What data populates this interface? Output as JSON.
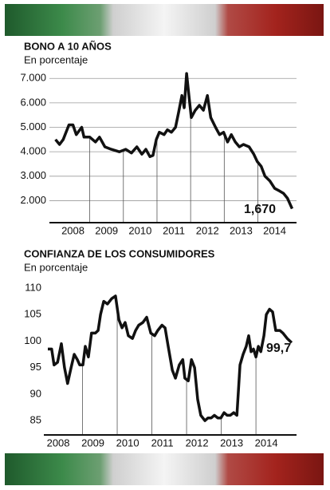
{
  "chart_data": [
    {
      "type": "line",
      "title": "BONO A 10 AÑOS",
      "subtitle": "En porcentaje",
      "color": "#111111",
      "grid": true,
      "x": [
        2007.98,
        2008.1,
        2008.21,
        2008.38,
        2008.5,
        2008.6,
        2008.76,
        2008.83,
        2009.0,
        2009.17,
        2009.29,
        2009.45,
        2009.64,
        2009.88,
        2010.07,
        2010.24,
        2010.4,
        2010.55,
        2010.67,
        2010.79,
        2010.88,
        2010.98,
        2011.07,
        2011.21,
        2011.31,
        2011.43,
        2011.55,
        2011.64,
        2011.74,
        2011.81,
        2011.88,
        2011.95,
        2012.02,
        2012.14,
        2012.26,
        2012.38,
        2012.5,
        2012.6,
        2012.74,
        2012.86,
        2012.98,
        2013.1,
        2013.21,
        2013.33,
        2013.45,
        2013.57,
        2013.74,
        2013.88,
        2013.98,
        2014.1,
        2014.21,
        2014.36,
        2014.5,
        2014.64,
        2014.76,
        2014.88,
        2015.02
      ],
      "values": [
        4.5,
        4.3,
        4.5,
        5.1,
        5.1,
        4.7,
        5.0,
        4.6,
        4.6,
        4.4,
        4.6,
        4.2,
        4.1,
        4.0,
        4.1,
        3.95,
        4.2,
        3.9,
        4.1,
        3.8,
        3.85,
        4.5,
        4.8,
        4.7,
        4.9,
        4.8,
        5.0,
        5.6,
        6.3,
        5.8,
        7.2,
        6.3,
        5.4,
        5.7,
        5.9,
        5.7,
        6.3,
        5.4,
        5.0,
        4.7,
        4.8,
        4.4,
        4.7,
        4.4,
        4.2,
        4.3,
        4.2,
        3.9,
        3.6,
        3.4,
        3.0,
        2.8,
        2.5,
        2.4,
        2.3,
        2.1,
        1.67
      ],
      "end_label": "1,670",
      "xlim": [
        2007.8,
        2015.15
      ],
      "xticks": [
        {
          "value": 2008.5,
          "label": "2008"
        },
        {
          "value": 2009.5,
          "label": "2009"
        },
        {
          "value": 2010.5,
          "label": "2010"
        },
        {
          "value": 2011.5,
          "label": "2011"
        },
        {
          "value": 2012.5,
          "label": "2012"
        },
        {
          "value": 2013.5,
          "label": "2013"
        },
        {
          "value": 2014.5,
          "label": "2014"
        }
      ],
      "ylim": [
        1.1,
        7.4
      ],
      "yticks": [
        {
          "value": 2,
          "label": "2.000"
        },
        {
          "value": 3,
          "label": "3.000"
        },
        {
          "value": 4,
          "label": "4.000"
        },
        {
          "value": 5,
          "label": "5.000"
        },
        {
          "value": 6,
          "label": "6.000"
        },
        {
          "value": 7,
          "label": "7.000"
        }
      ]
    },
    {
      "type": "line",
      "title": "CONFIANZA DE LOS CONSUMIDORES",
      "subtitle": "En porcentaje",
      "color": "#111111",
      "grid": false,
      "x": [
        2008.0,
        2008.11,
        2008.18,
        2008.28,
        2008.39,
        2008.48,
        2008.57,
        2008.67,
        2008.76,
        2008.85,
        2008.92,
        2009.01,
        2009.08,
        2009.17,
        2009.26,
        2009.37,
        2009.45,
        2009.52,
        2009.61,
        2009.72,
        2009.84,
        2009.95,
        2010.05,
        2010.14,
        2010.23,
        2010.32,
        2010.44,
        2010.53,
        2010.62,
        2010.74,
        2010.85,
        2010.97,
        2011.08,
        2011.17,
        2011.29,
        2011.38,
        2011.47,
        2011.59,
        2011.68,
        2011.79,
        2011.89,
        2011.95,
        2012.05,
        2012.14,
        2012.23,
        2012.32,
        2012.41,
        2012.53,
        2012.62,
        2012.71,
        2012.8,
        2012.9,
        2012.99,
        2013.08,
        2013.17,
        2013.26,
        2013.36,
        2013.45,
        2013.54,
        2013.63,
        2013.72,
        2013.79,
        2013.86,
        2013.93,
        2014.0,
        2014.07,
        2014.14,
        2014.23,
        2014.3,
        2014.39,
        2014.48,
        2014.57,
        2014.69,
        2014.78,
        2014.9,
        2015.03
      ],
      "values": [
        98.5,
        98.5,
        95.5,
        96,
        99.5,
        95,
        92,
        95,
        97.5,
        96.5,
        95.5,
        95.5,
        99,
        97,
        101.5,
        101.5,
        102,
        105,
        107.5,
        107,
        108,
        108.5,
        104,
        102.5,
        103.5,
        101,
        100.5,
        102,
        103,
        103.5,
        104.5,
        101.5,
        101,
        102,
        103,
        102.5,
        99,
        94.5,
        93,
        95.5,
        96.5,
        93,
        92.5,
        96.5,
        95,
        89,
        86,
        85,
        85.5,
        85.5,
        86,
        85.5,
        85.5,
        86.5,
        86,
        86,
        86.5,
        86,
        95.5,
        97.5,
        99,
        101,
        98,
        98.5,
        97,
        99,
        98,
        101,
        105,
        106,
        105.5,
        102,
        102,
        101.5,
        100.5,
        99.7
      ],
      "end_label": "99,7",
      "xlim": [
        2007.885,
        2015.17
      ],
      "xticks": [
        {
          "value": 2008.3,
          "label": "2008"
        },
        {
          "value": 2009.3,
          "label": "2009"
        },
        {
          "value": 2010.3,
          "label": "2010"
        },
        {
          "value": 2011.3,
          "label": "2011"
        },
        {
          "value": 2012.3,
          "label": "2012"
        },
        {
          "value": 2013.3,
          "label": "2013"
        },
        {
          "value": 2014.3,
          "label": "2014"
        }
      ],
      "ylim": [
        82.3,
        112.4
      ],
      "yticks": [
        85,
        90,
        95,
        100,
        105,
        110
      ]
    }
  ]
}
